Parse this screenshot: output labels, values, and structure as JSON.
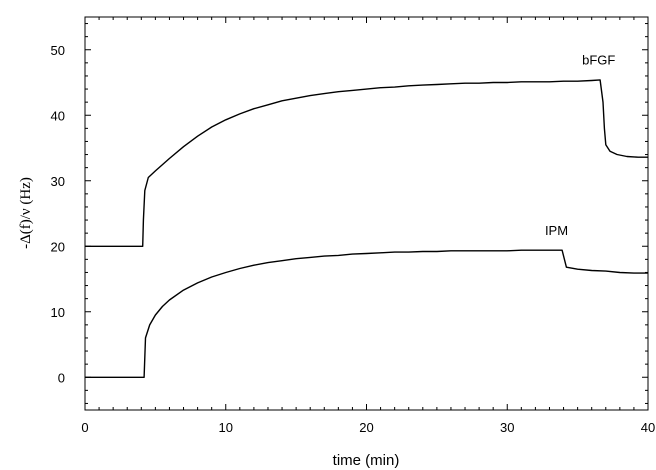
{
  "chart_data": {
    "type": "line",
    "title": "",
    "xlabel": "time (min)",
    "ylabel": "-Δ(f)/ν (Hz)",
    "xlim": [
      0,
      40
    ],
    "ylim": [
      -5,
      55
    ],
    "x_ticks": [
      0,
      10,
      20,
      30,
      40
    ],
    "y_ticks": [
      0,
      10,
      20,
      30,
      40,
      50
    ],
    "x_minor_step": 1,
    "y_minor_step": 2,
    "grid": false,
    "legend": "none",
    "series": [
      {
        "name": "bFGF",
        "label_at": [
          36.5,
          48.5
        ],
        "points": [
          [
            0,
            20
          ],
          [
            4.1,
            20
          ],
          [
            4.15,
            24
          ],
          [
            4.25,
            28.5
          ],
          [
            4.5,
            30.5
          ],
          [
            5,
            31.5
          ],
          [
            6,
            33.4
          ],
          [
            7,
            35.2
          ],
          [
            8,
            36.8
          ],
          [
            9,
            38.2
          ],
          [
            10,
            39.3
          ],
          [
            11,
            40.2
          ],
          [
            12,
            41.0
          ],
          [
            13,
            41.6
          ],
          [
            14,
            42.2
          ],
          [
            15,
            42.6
          ],
          [
            16,
            43.0
          ],
          [
            17,
            43.3
          ],
          [
            18,
            43.6
          ],
          [
            19,
            43.8
          ],
          [
            20,
            44.0
          ],
          [
            21,
            44.2
          ],
          [
            22,
            44.3
          ],
          [
            23,
            44.5
          ],
          [
            24,
            44.6
          ],
          [
            25,
            44.7
          ],
          [
            26,
            44.8
          ],
          [
            27,
            44.9
          ],
          [
            28,
            44.9
          ],
          [
            29,
            45.0
          ],
          [
            30,
            45.0
          ],
          [
            31,
            45.1
          ],
          [
            32,
            45.1
          ],
          [
            33,
            45.1
          ],
          [
            34,
            45.2
          ],
          [
            35,
            45.2
          ],
          [
            36,
            45.3
          ],
          [
            36.6,
            45.4
          ],
          [
            36.8,
            42
          ],
          [
            36.9,
            38
          ],
          [
            37.0,
            35.5
          ],
          [
            37.3,
            34.5
          ],
          [
            37.8,
            34.0
          ],
          [
            38.5,
            33.7
          ],
          [
            39.3,
            33.6
          ],
          [
            40,
            33.6
          ]
        ]
      },
      {
        "name": "IPM",
        "label_at": [
          33.5,
          22.5
        ],
        "points": [
          [
            0,
            0
          ],
          [
            4.2,
            0
          ],
          [
            4.3,
            6
          ],
          [
            4.6,
            8
          ],
          [
            5,
            9.5
          ],
          [
            5.5,
            10.8
          ],
          [
            6,
            11.8
          ],
          [
            7,
            13.3
          ],
          [
            8,
            14.4
          ],
          [
            9,
            15.3
          ],
          [
            10,
            16.0
          ],
          [
            11,
            16.6
          ],
          [
            12,
            17.1
          ],
          [
            13,
            17.5
          ],
          [
            14,
            17.8
          ],
          [
            15,
            18.1
          ],
          [
            16,
            18.3
          ],
          [
            17,
            18.5
          ],
          [
            18,
            18.6
          ],
          [
            19,
            18.8
          ],
          [
            20,
            18.9
          ],
          [
            21,
            19.0
          ],
          [
            22,
            19.1
          ],
          [
            23,
            19.1
          ],
          [
            24,
            19.2
          ],
          [
            25,
            19.2
          ],
          [
            26,
            19.3
          ],
          [
            27,
            19.3
          ],
          [
            28,
            19.3
          ],
          [
            29,
            19.3
          ],
          [
            30,
            19.3
          ],
          [
            31,
            19.4
          ],
          [
            32,
            19.4
          ],
          [
            33,
            19.4
          ],
          [
            33.9,
            19.4
          ],
          [
            34.2,
            16.8
          ],
          [
            35,
            16.5
          ],
          [
            36,
            16.3
          ],
          [
            37,
            16.2
          ],
          [
            38,
            16.0
          ],
          [
            39,
            15.9
          ],
          [
            40,
            15.9
          ]
        ]
      }
    ]
  }
}
